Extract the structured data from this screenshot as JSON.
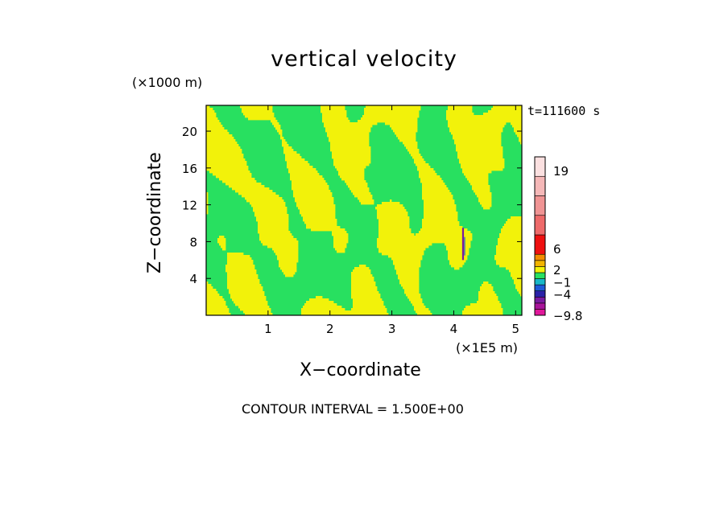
{
  "chart_data": {
    "type": "heatmap",
    "title": "vertical velocity",
    "xlabel": "X−coordinate",
    "ylabel": "Z−coordinate",
    "x_unit_label": "(×1E5 m)",
    "y_unit_label": "(×1000 m)",
    "time_label": "t=111600 s",
    "footer": "CONTOUR INTERVAL = 1.500E+00",
    "xlim": [
      0,
      5.1
    ],
    "ylim": [
      0,
      22.8
    ],
    "x_ticks": [
      {
        "value": 1,
        "label": "1"
      },
      {
        "value": 2,
        "label": "2"
      },
      {
        "value": 3,
        "label": "3"
      },
      {
        "value": 4,
        "label": "4"
      },
      {
        "value": 5,
        "label": "5"
      }
    ],
    "y_ticks": [
      {
        "value": 4,
        "label": "4"
      },
      {
        "value": 8,
        "label": "8"
      },
      {
        "value": 12,
        "label": "12"
      },
      {
        "value": 16,
        "label": "16"
      },
      {
        "value": 20,
        "label": "20"
      }
    ],
    "colorbar": {
      "levels": [
        {
          "color": "#e0189a"
        },
        {
          "color": "#a8149a"
        },
        {
          "color": "#7a1aa0"
        },
        {
          "color": "#2a22a8"
        },
        {
          "color": "#1e5ad8"
        },
        {
          "color": "#18b8c8"
        },
        {
          "color": "#28e060"
        },
        {
          "color": "#f2f20a"
        },
        {
          "color": "#f2b400"
        },
        {
          "color": "#f28c00"
        },
        {
          "color": "#ee1010"
        },
        {
          "color": "#ee6a6a"
        },
        {
          "color": "#f09494"
        },
        {
          "color": "#f5b8b8"
        },
        {
          "color": "#fbe0e0"
        }
      ],
      "labels": [
        {
          "level": 0,
          "text": "−9.8"
        },
        {
          "level": 3.5,
          "text": "−4"
        },
        {
          "level": 5.5,
          "text": "−1"
        },
        {
          "level": 7.5,
          "text": "2"
        },
        {
          "level": 10.3,
          "text": "6"
        },
        {
          "level": 14.3,
          "text": "19"
        }
      ]
    },
    "field_colors": {
      "positive": "#f2f20a",
      "negative": "#28e060"
    },
    "feature": {
      "x": 4.15,
      "z0": 6.0,
      "z1": 9.5,
      "color": "#7a1aa0"
    }
  }
}
